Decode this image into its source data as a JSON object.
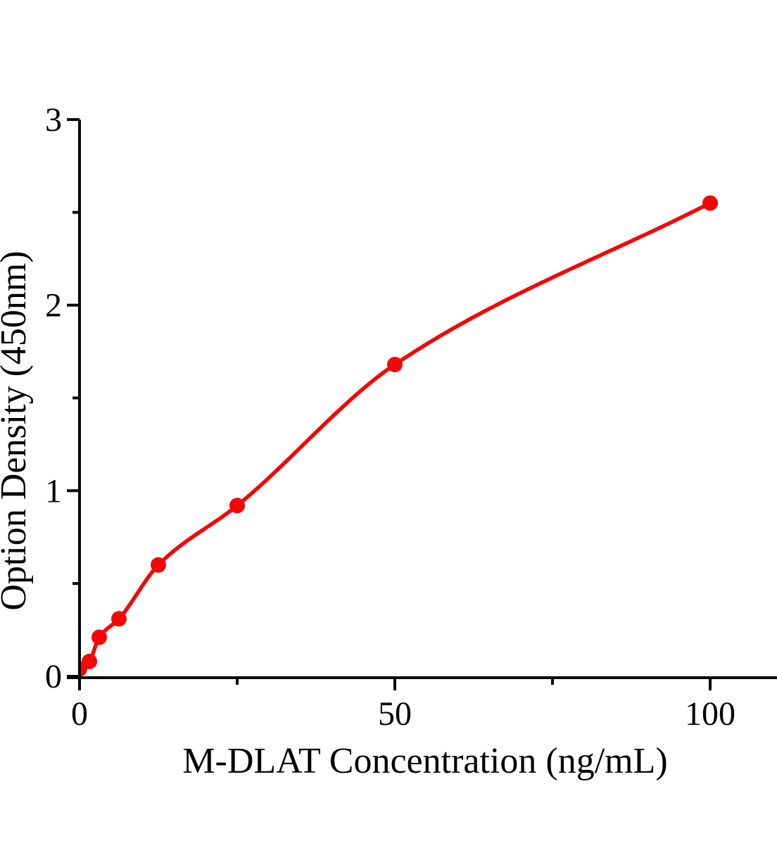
{
  "figure": {
    "background_color": "#ffffff",
    "description_labels": {
      "x_axis_title": "M-DLAT Concentration（ng/mL）",
      "y_axis_title": "Option Density（450nm）"
    }
  },
  "chart_data": {
    "type": "scatter",
    "title": "",
    "xlabel": "M-DLAT Concentration（ng/mL）",
    "ylabel": "Option Density（450nm）",
    "x": [
      0,
      1.56,
      3.12,
      6.25,
      12.5,
      25,
      50,
      100
    ],
    "y": [
      0.04,
      0.08,
      0.21,
      0.31,
      0.6,
      0.92,
      1.68,
      2.55
    ],
    "fit_curve": true,
    "marker": "circle",
    "marker_color": "#f40707",
    "line_color": "#f40707",
    "axis_color": "#000000",
    "grid": false,
    "legend": null,
    "xlim": [
      0,
      110.6
    ],
    "ylim": [
      0,
      3
    ],
    "x_major_ticks": [
      0,
      50,
      100
    ],
    "x_major_tick_labels": [
      "0",
      "50",
      "100"
    ],
    "x_minor_ticks": [
      25,
      75
    ],
    "y_major_ticks": [
      0,
      1,
      2,
      3
    ],
    "y_major_tick_labels": [
      "0",
      "1",
      "2",
      "3"
    ],
    "y_minor_ticks": [
      0.5,
      1.5,
      2.5
    ]
  }
}
